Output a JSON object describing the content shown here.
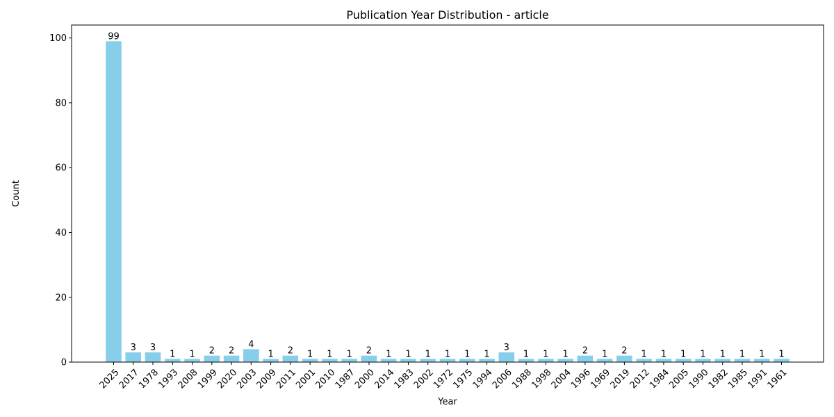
{
  "chart_data": {
    "type": "bar",
    "title": "Publication Year Distribution - article",
    "xlabel": "Year",
    "ylabel": "Count",
    "categories": [
      "2025",
      "2017",
      "1978",
      "1993",
      "2008",
      "1999",
      "2020",
      "2003",
      "2009",
      "2011",
      "2001",
      "2010",
      "1987",
      "2000",
      "2014",
      "1983",
      "2002",
      "1972",
      "1975",
      "1994",
      "2006",
      "1988",
      "1998",
      "2004",
      "1996",
      "1969",
      "2019",
      "2012",
      "1984",
      "2005",
      "1990",
      "1982",
      "1985",
      "1991",
      "1961"
    ],
    "values": [
      99,
      3,
      3,
      1,
      1,
      2,
      2,
      4,
      1,
      2,
      1,
      1,
      1,
      2,
      1,
      1,
      1,
      1,
      1,
      1,
      3,
      1,
      1,
      1,
      2,
      1,
      2,
      1,
      1,
      1,
      1,
      1,
      1,
      1,
      1
    ],
    "ylim": [
      0,
      104
    ],
    "yticks": [
      0,
      20,
      40,
      60,
      80,
      100
    ],
    "bar_color": "#87ceeb",
    "grid": false,
    "legend": "none",
    "data_labels": true,
    "xtick_rotation_deg": 45
  }
}
